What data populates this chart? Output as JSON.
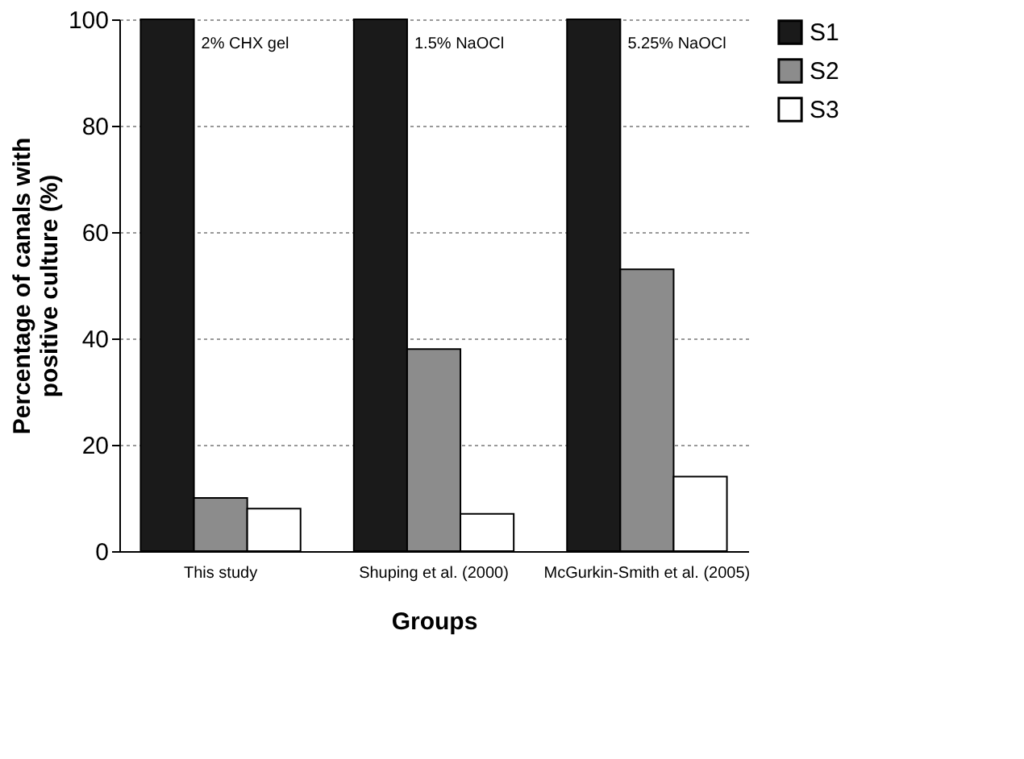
{
  "chart_data": {
    "type": "bar",
    "xlabel": "Groups",
    "ylabel": "Percentage of canals with positive culture (%)",
    "categories": [
      "This study",
      "Shuping et al. (2000)",
      "McGurkin-Smith et al. (2005)"
    ],
    "series": [
      {
        "name": "S1",
        "color": "#1a1a1a",
        "values": [
          100,
          100,
          100
        ]
      },
      {
        "name": "S2",
        "color": "#8c8c8c",
        "values": [
          10,
          38,
          53
        ]
      },
      {
        "name": "S3",
        "color": "#ffffff",
        "values": [
          8,
          7,
          14
        ]
      }
    ],
    "ylim": [
      0,
      100
    ],
    "yticks": [
      0,
      20,
      40,
      60,
      80,
      100
    ],
    "grid": "y",
    "legend": "right",
    "annotations": [
      "2% CHX gel",
      "1.5% NaOCl",
      "5.25% NaOCl"
    ]
  }
}
